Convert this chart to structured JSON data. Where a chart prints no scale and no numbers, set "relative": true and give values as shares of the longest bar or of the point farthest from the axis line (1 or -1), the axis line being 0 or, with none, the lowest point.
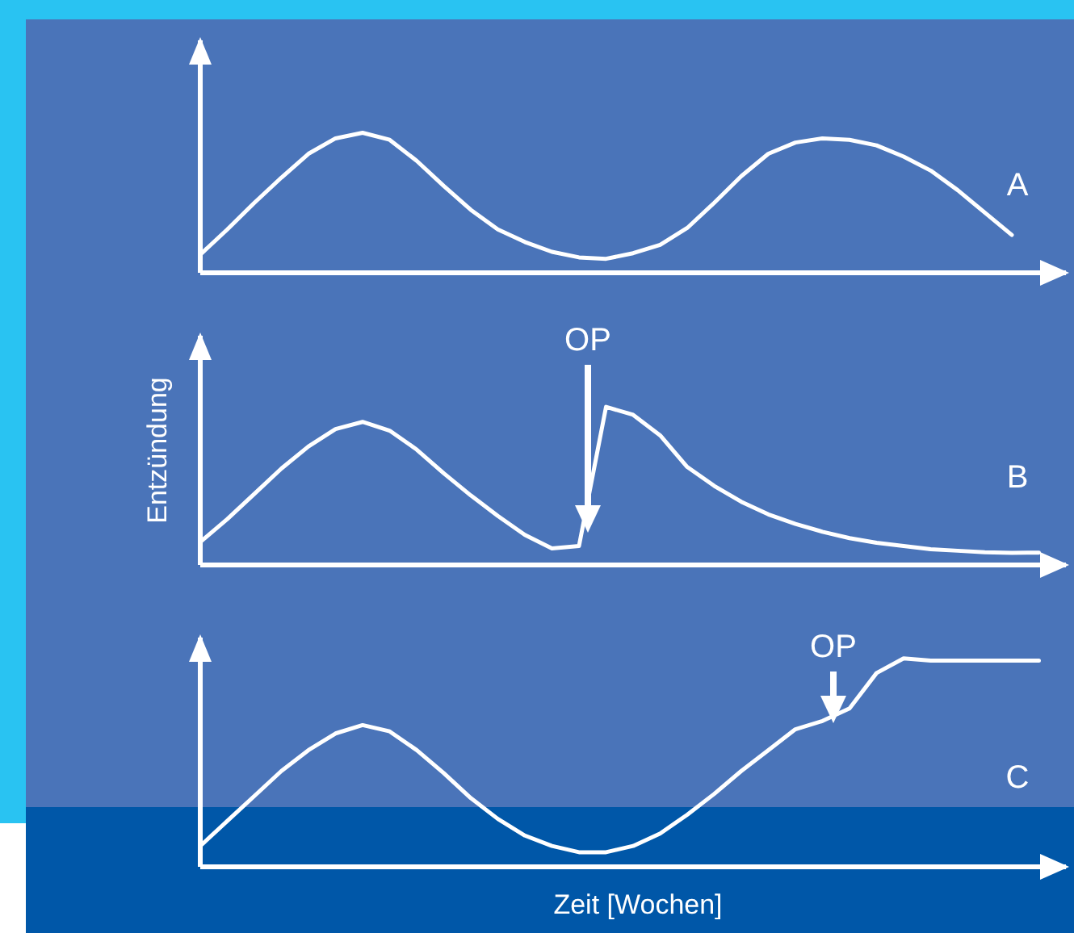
{
  "chart_data": [
    {
      "type": "line",
      "relative": true,
      "categories": [
        null,
        null,
        null,
        null,
        null,
        null,
        null,
        null,
        null,
        null,
        null,
        null,
        null,
        null,
        null,
        null,
        null,
        null,
        null,
        null,
        null,
        null,
        null,
        null,
        null,
        null,
        null,
        null,
        null,
        null,
        null,
        null
      ],
      "tick_labels": false,
      "marker": "none",
      "line_style": "solid",
      "annotations": [
        "A"
      ],
      "series": [
        {
          "color": "#ffffff",
          "values": [
            0.13,
            0.31,
            0.5,
            0.68,
            0.85,
            0.96,
            1,
            0.95,
            0.8,
            0.62,
            0.45,
            0.31,
            0.22,
            0.15,
            0.11,
            0.1,
            0.14,
            0.2,
            0.32,
            0.5,
            0.69,
            0.85,
            0.93,
            0.96,
            0.95,
            0.91,
            0.83,
            0.73,
            0.59,
            0.43,
            0.27,
            null
          ]
        }
      ]
    },
    {
      "type": "line",
      "relative": true,
      "categories": [
        null,
        null,
        null,
        null,
        null,
        null,
        null,
        null,
        null,
        null,
        null,
        null,
        null,
        null,
        null,
        null,
        null,
        null,
        null,
        null,
        null,
        null,
        null,
        null,
        null,
        null,
        null,
        null,
        null,
        null,
        null,
        null
      ],
      "tick_labels": false,
      "marker": "none",
      "line_style": "solid",
      "ylabel": "Entzündung",
      "annotations": [
        "B",
        "OP"
      ],
      "series": [
        {
          "color": "#ffffff",
          "values": [
            0.145,
            0.29,
            0.45,
            0.61,
            0.75,
            0.86,
            0.905,
            0.85,
            0.73,
            0.58,
            0.44,
            0.31,
            0.19,
            0.105,
            0.12,
            1,
            0.95,
            0.82,
            0.62,
            0.5,
            0.4,
            0.32,
            0.26,
            0.21,
            0.17,
            0.14,
            0.12,
            0.1,
            0.09,
            0.08,
            0.077,
            0.078
          ]
        }
      ]
    },
    {
      "type": "line",
      "relative": true,
      "categories": [
        null,
        null,
        null,
        null,
        null,
        null,
        null,
        null,
        null,
        null,
        null,
        null,
        null,
        null,
        null,
        null,
        null,
        null,
        null,
        null,
        null,
        null,
        null,
        null,
        null,
        null,
        null,
        null,
        null,
        null,
        null,
        null
      ],
      "tick_labels": false,
      "marker": "none",
      "line_style": "solid",
      "xlabel": "Zeit [Wochen]",
      "annotations": [
        "C",
        "OP"
      ],
      "series": [
        {
          "color": "#ffffff",
          "values": [
            0.1,
            0.22,
            0.34,
            0.46,
            0.56,
            0.64,
            0.68,
            0.65,
            0.56,
            0.45,
            0.33,
            0.23,
            0.15,
            0.1,
            0.07,
            0.07,
            0.1,
            0.16,
            0.25,
            0.35,
            0.46,
            0.56,
            0.66,
            0.7,
            0.76,
            0.93,
            1,
            0.99,
            0.99,
            0.99,
            0.99,
            0.99
          ]
        }
      ]
    }
  ]
}
